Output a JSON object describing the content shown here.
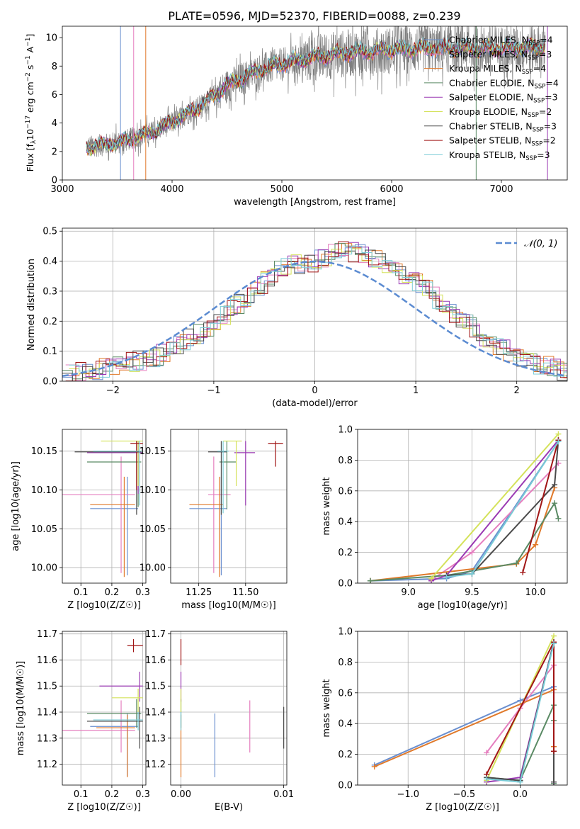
{
  "figure": {
    "title": "PLATE=0596, MJD=52370, FIBERID=0088, z=0.239"
  },
  "series_styles": [
    {
      "name": "Chabrier MILES, N_SSP=4",
      "label": "Chabrier MILES, N",
      "sub": "SSP",
      "tail": "=4",
      "color": "#6a8fcf"
    },
    {
      "name": "Salpeter MILES, N_SSP=3",
      "label": "Salpeter MILES, N",
      "sub": "SSP",
      "tail": "=3",
      "color": "#e57fbf"
    },
    {
      "name": "Kroupa MILES, N_SSP=4",
      "label": "Kroupa MILES, N",
      "sub": "SSP",
      "tail": "=4",
      "color": "#e0792a"
    },
    {
      "name": "Chabrier ELODIE, N_SSP=4",
      "label": "Chabrier ELODIE, N",
      "sub": "SSP",
      "tail": "=4",
      "color": "#5a8a64"
    },
    {
      "name": "Salpeter ELODIE, N_SSP=3",
      "label": "Salpeter ELODIE, N",
      "sub": "SSP",
      "tail": "=3",
      "color": "#9b3ab3"
    },
    {
      "name": "Kroupa ELODIE, N_SSP=2",
      "label": "Kroupa ELODIE, N",
      "sub": "SSP",
      "tail": "=2",
      "color": "#d4e25a"
    },
    {
      "name": "Chabrier STELIB, N_SSP=3",
      "label": "Chabrier STELIB, N",
      "sub": "SSP",
      "tail": "=3",
      "color": "#4a4a4a"
    },
    {
      "name": "Salpeter STELIB, N_SSP=2",
      "label": "Salpeter STELIB, N",
      "sub": "SSP",
      "tail": "=2",
      "color": "#a01515"
    },
    {
      "name": "Kroupa STELIB, N_SSP=3",
      "label": "Kroupa STELIB, N",
      "sub": "SSP",
      "tail": "=3",
      "color": "#79cbd6"
    }
  ],
  "chart_data": [
    {
      "id": "spectrum",
      "type": "line",
      "xlabel": "wavelength [Angstrom, rest frame]",
      "ylabel": "Flux [f_λ 10^-17 erg cm^-2 s^-1 A^-1]",
      "xlim": [
        3000,
        7600
      ],
      "ylim": [
        0,
        10.8
      ],
      "xticks": [
        3000,
        4000,
        5000,
        6000,
        7000
      ],
      "yticks": [
        0,
        2,
        4,
        6,
        8,
        10
      ],
      "data_color": "#7f7f7f",
      "model_continuum": {
        "wavelength": [
          3220,
          3500,
          3800,
          4000,
          4300,
          4500,
          4800,
          5000,
          5300,
          5600,
          6000,
          6300,
          6600,
          7000,
          7400
        ],
        "flux": [
          2.3,
          2.6,
          3.3,
          4.0,
          5.4,
          6.6,
          7.7,
          8.1,
          8.6,
          8.9,
          9.1,
          9.2,
          9.2,
          9.2,
          9.3
        ]
      },
      "legend_location": "upper right"
    },
    {
      "id": "residuals",
      "type": "step",
      "xlabel": "(data-model)/error",
      "ylabel": "Normed distribution",
      "xlim": [
        -2.5,
        2.5
      ],
      "ylim": [
        0,
        0.51
      ],
      "xticks": [
        -2,
        -1,
        0,
        1,
        2
      ],
      "yticks": [
        0,
        0.1,
        0.2,
        0.3,
        0.4,
        0.5
      ],
      "histogram_profile": {
        "x": [
          -2.5,
          -2.0,
          -1.5,
          -1.0,
          -0.5,
          -0.3,
          0.0,
          0.3,
          0.5,
          1.0,
          1.5,
          2.0,
          2.5
        ],
        "y": [
          0.02,
          0.045,
          0.09,
          0.19,
          0.33,
          0.38,
          0.4,
          0.44,
          0.42,
          0.34,
          0.19,
          0.08,
          0.03
        ]
      },
      "reference_curve": {
        "name": "𝒩(0, 1)",
        "function": "normal pdf, mean 0, sigma 1",
        "color": "#5b8bd1"
      },
      "legend_location": "upper right"
    },
    {
      "id": "age-vs-Z",
      "type": "errorbar",
      "xlabel": "Z [log10(Z/Z☉)]",
      "ylabel": "age [log10(age/yr)]",
      "xlim": [
        0.04,
        0.31
      ],
      "ylim": [
        9.98,
        10.178
      ],
      "xticks": [
        0.1,
        0.2,
        0.3
      ],
      "yticks": [
        10.0,
        10.05,
        10.1,
        10.15
      ],
      "points": [
        {
          "x": 0.25,
          "xlo": 0.13,
          "xhi": 0.285,
          "y": 10.076,
          "ylo": 9.99,
          "yhi": 10.117
        },
        {
          "x": 0.23,
          "xlo": 0.04,
          "xhi": 0.275,
          "y": 10.094,
          "ylo": 9.993,
          "yhi": 10.143
        },
        {
          "x": 0.24,
          "xlo": 0.13,
          "xhi": 0.275,
          "y": 10.081,
          "ylo": 9.988,
          "yhi": 10.117
        },
        {
          "x": 0.285,
          "xlo": 0.12,
          "xhi": 0.295,
          "y": 10.136,
          "ylo": 10.078,
          "yhi": 10.162
        },
        {
          "x": 0.285,
          "xlo": 0.12,
          "xhi": 0.3,
          "y": 10.148,
          "ylo": 10.095,
          "yhi": 10.163
        },
        {
          "x": 0.285,
          "xlo": 0.165,
          "xhi": 0.3,
          "y": 10.163,
          "ylo": 10.105,
          "yhi": 10.163
        },
        {
          "x": 0.28,
          "xlo": 0.08,
          "xhi": 0.295,
          "y": 10.149,
          "ylo": 10.068,
          "yhi": 10.163
        },
        {
          "x": 0.28,
          "xlo": 0.26,
          "xhi": 0.3,
          "y": 10.16,
          "ylo": 10.1,
          "yhi": 10.163
        },
        {
          "x": 0.29,
          "xlo": 0.14,
          "xhi": 0.3,
          "y": 10.15,
          "ylo": 10.08,
          "yhi": 10.163
        }
      ]
    },
    {
      "id": "age-vs-mass",
      "type": "errorbar",
      "xlabel": "mass [log10(M/M☉)]",
      "ylabel": "",
      "xlim": [
        11.1,
        11.72
      ],
      "ylim": [
        9.98,
        10.178
      ],
      "xticks": [
        11.25,
        11.5
      ],
      "yticks": [
        10.0,
        10.05,
        10.1,
        10.15
      ],
      "points": [
        {
          "x": 11.37,
          "xlo": 11.2,
          "xhi": 11.4,
          "y": 10.076,
          "ylo": 9.99,
          "yhi": 10.117
        },
        {
          "x": 11.33,
          "xlo": 11.3,
          "xhi": 11.42,
          "y": 10.094,
          "ylo": 9.993,
          "yhi": 10.143
        },
        {
          "x": 11.36,
          "xlo": 11.2,
          "xhi": 11.38,
          "y": 10.081,
          "ylo": 9.988,
          "yhi": 10.117
        },
        {
          "x": 11.4,
          "xlo": 11.36,
          "xhi": 11.45,
          "y": 10.136,
          "ylo": 10.075,
          "yhi": 10.163
        },
        {
          "x": 11.5,
          "xlo": 11.44,
          "xhi": 11.55,
          "y": 10.148,
          "ylo": 10.08,
          "yhi": 10.163
        },
        {
          "x": 11.45,
          "xlo": 11.38,
          "xhi": 11.48,
          "y": 10.163,
          "ylo": 10.105,
          "yhi": 10.163
        },
        {
          "x": 11.37,
          "xlo": 11.3,
          "xhi": 11.4,
          "y": 10.149,
          "ylo": 10.068,
          "yhi": 10.163
        },
        {
          "x": 11.66,
          "xlo": 11.62,
          "xhi": 11.7,
          "y": 10.16,
          "ylo": 10.13,
          "yhi": 10.163
        },
        {
          "x": 11.38,
          "xlo": 11.35,
          "xhi": 11.41,
          "y": 10.15,
          "ylo": 10.07,
          "yhi": 10.163
        }
      ]
    },
    {
      "id": "weight-vs-age",
      "type": "line",
      "xlabel": "age [log10(age/yr)]",
      "ylabel": "mass weight",
      "xlim": [
        8.6,
        10.25
      ],
      "ylim": [
        0,
        1.0
      ],
      "xticks": [
        9.0,
        9.5,
        10.0
      ],
      "yticks": [
        0,
        0.2,
        0.4,
        0.6,
        0.8,
        1.0
      ],
      "series": [
        {
          "x": [
            8.7,
            9.3,
            9.5,
            10.18
          ],
          "y": [
            0.015,
            0.03,
            0.08,
            0.92
          ]
        },
        {
          "x": [
            9.18,
            9.5,
            10.18
          ],
          "y": [
            0.02,
            0.2,
            0.78
          ]
        },
        {
          "x": [
            8.7,
            9.85,
            10.0,
            10.15
          ],
          "y": [
            0.015,
            0.125,
            0.25,
            0.62
          ]
        },
        {
          "x": [
            8.7,
            9.3,
            9.85,
            10.15,
            10.18
          ],
          "y": [
            0.015,
            0.05,
            0.13,
            0.52,
            0.42
          ]
        },
        {
          "x": [
            9.18,
            9.3,
            10.18
          ],
          "y": [
            0.015,
            0.05,
            0.93
          ]
        },
        {
          "x": [
            9.18,
            10.18
          ],
          "y": [
            0.03,
            0.97
          ]
        },
        {
          "x": [
            9.3,
            9.5,
            10.15,
            10.18
          ],
          "y": [
            0.05,
            0.06,
            0.64,
            0.93
          ]
        },
        {
          "x": [
            9.9,
            10.18
          ],
          "y": [
            0.07,
            0.93
          ]
        },
        {
          "x": [
            9.3,
            9.5,
            10.18
          ],
          "y": [
            0.04,
            0.06,
            0.92
          ]
        }
      ]
    },
    {
      "id": "mass-vs-Z",
      "type": "errorbar",
      "xlabel": "Z [log10(Z/Z☉)]",
      "ylabel": "mass [log10(M/M☉)]",
      "xlim": [
        0.04,
        0.31
      ],
      "ylim": [
        11.12,
        11.71
      ],
      "xticks": [
        0.1,
        0.2,
        0.3
      ],
      "yticks": [
        11.2,
        11.3,
        11.4,
        11.5,
        11.6,
        11.7
      ],
      "points": [
        {
          "x": 0.25,
          "xlo": 0.13,
          "xhi": 0.285,
          "y": 11.345,
          "ylo": 11.155,
          "yhi": 11.395
        },
        {
          "x": 0.23,
          "xlo": 0.04,
          "xhi": 0.275,
          "y": 11.33,
          "ylo": 11.245,
          "yhi": 11.445
        },
        {
          "x": 0.25,
          "xlo": 0.15,
          "xhi": 0.275,
          "y": 11.34,
          "ylo": 11.15,
          "yhi": 11.39
        },
        {
          "x": 0.28,
          "xlo": 0.12,
          "xhi": 0.295,
          "y": 11.395,
          "ylo": 11.34,
          "yhi": 11.45
        },
        {
          "x": 0.29,
          "xlo": 0.16,
          "xhi": 0.3,
          "y": 11.5,
          "ylo": 11.44,
          "yhi": 11.555
        },
        {
          "x": 0.285,
          "xlo": 0.2,
          "xhi": 0.3,
          "y": 11.455,
          "ylo": 11.4,
          "yhi": 11.49
        },
        {
          "x": 0.29,
          "xlo": 0.12,
          "xhi": 0.3,
          "y": 11.365,
          "ylo": 11.26,
          "yhi": 11.42
        },
        {
          "x": 0.27,
          "xlo": 0.25,
          "xhi": 0.3,
          "y": 11.655,
          "ylo": 11.63,
          "yhi": 11.68
        },
        {
          "x": 0.285,
          "xlo": 0.14,
          "xhi": 0.3,
          "y": 11.37,
          "ylo": 11.33,
          "yhi": 11.4
        }
      ]
    },
    {
      "id": "mass-vs-EBV",
      "type": "errorbar",
      "xlabel": "E(B-V)",
      "ylabel": "",
      "xlim": [
        -0.001,
        0.0103
      ],
      "ylim": [
        11.12,
        11.71
      ],
      "xticks": [
        0.0,
        0.01
      ],
      "yticks": [
        11.2,
        11.3,
        11.4,
        11.5,
        11.6,
        11.7
      ],
      "points": [
        {
          "x": 0.0033,
          "ylo": 11.15,
          "yhi": 11.395
        },
        {
          "x": 0.0067,
          "ylo": 11.245,
          "yhi": 11.445
        },
        {
          "x": 0.0,
          "ylo": 11.15,
          "yhi": 11.39
        },
        {
          "x": 0.0,
          "ylo": 11.34,
          "yhi": 11.45
        },
        {
          "x": 0.0,
          "ylo": 11.44,
          "yhi": 11.555
        },
        {
          "x": 0.0,
          "ylo": 11.4,
          "yhi": 11.49
        },
        {
          "x": 0.01,
          "ylo": 11.26,
          "yhi": 11.42
        },
        {
          "x": 0.0,
          "ylo": 11.58,
          "yhi": 11.68
        },
        {
          "x": 0.0,
          "ylo": 11.33,
          "yhi": 11.4
        }
      ]
    },
    {
      "id": "weight-vs-Z",
      "type": "line",
      "xlabel": "Z [log10(Z/Z☉)]",
      "ylabel": "mass weight",
      "xlim": [
        -1.45,
        0.42
      ],
      "ylim": [
        0,
        1.0
      ],
      "xticks": [
        -1.0,
        -0.5,
        0.0
      ],
      "yticks": [
        0,
        0.2,
        0.4,
        0.6,
        0.8,
        1.0
      ],
      "series": [
        {
          "x": [
            -1.3,
            0.0,
            0.3,
            0.3
          ],
          "y": [
            0.13,
            0.55,
            0.64,
            0.92
          ]
        },
        {
          "x": [
            -0.3,
            0.0,
            0.3
          ],
          "y": [
            0.21,
            0.5,
            0.78
          ]
        },
        {
          "x": [
            -1.3,
            0.3,
            0.3
          ],
          "y": [
            0.12,
            0.62,
            0.25
          ]
        },
        {
          "x": [
            -0.3,
            0.0,
            0.3,
            0.3,
            0.3
          ],
          "y": [
            0.05,
            0.03,
            0.52,
            0.42,
            0.01
          ]
        },
        {
          "x": [
            -0.3,
            0.0,
            0.3,
            0.3
          ],
          "y": [
            0.02,
            0.05,
            0.93,
            0.02
          ]
        },
        {
          "x": [
            -0.3,
            0.3
          ],
          "y": [
            0.03,
            0.97
          ]
        },
        {
          "x": [
            -0.3,
            0.0,
            0.3,
            0.3
          ],
          "y": [
            0.05,
            0.03,
            0.93,
            0.02
          ]
        },
        {
          "x": [
            -0.3,
            0.3,
            0.3
          ],
          "y": [
            0.07,
            0.93,
            0.22
          ]
        },
        {
          "x": [
            -0.3,
            0.0,
            0.3
          ],
          "y": [
            0.04,
            0.02,
            0.92
          ]
        }
      ]
    }
  ]
}
